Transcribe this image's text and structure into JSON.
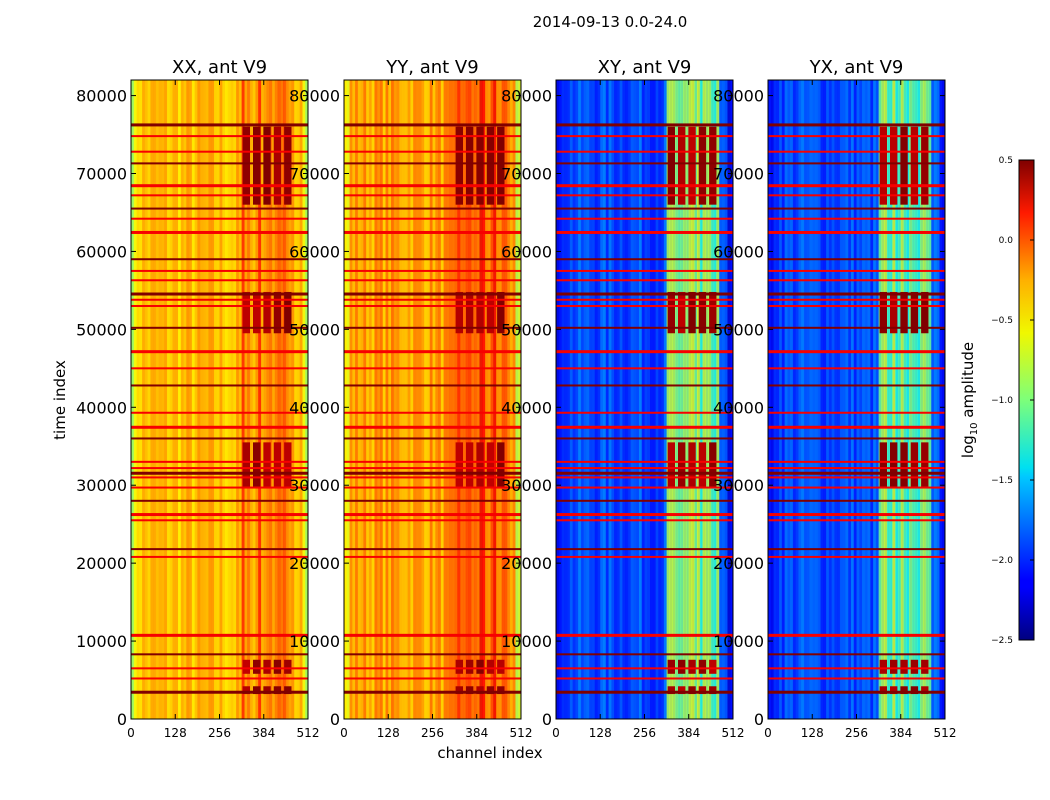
{
  "chart_data": {
    "type": "heatmap",
    "suptitle": "2014-09-13 0.0-24.0",
    "xlabel": "channel index",
    "ylabel": "time index",
    "x_range": [
      0,
      512
    ],
    "y_range": [
      0,
      82000
    ],
    "x_ticks": [
      0,
      128,
      256,
      384,
      512
    ],
    "y_ticks": [
      0,
      10000,
      20000,
      30000,
      40000,
      50000,
      60000,
      70000,
      80000
    ],
    "colorbar": {
      "label_prefix": "log",
      "label_sub": "10",
      "label_suffix": " amplitude",
      "range": [
        -2.5,
        0.5
      ],
      "ticks": [
        "0.5",
        "0.0",
        "−0.5",
        "−1.0",
        "−1.5",
        "−2.0",
        "−2.5"
      ],
      "tick_values": [
        0.5,
        0.0,
        -0.5,
        -1.0,
        -1.5,
        -2.0,
        -2.5
      ],
      "colormap": "jet"
    },
    "panels": [
      {
        "title": "XX, ant V9",
        "base_level": -0.45,
        "band_level": -0.2,
        "band_range": [
          320,
          470
        ]
      },
      {
        "title": "YY, ant V9",
        "base_level": -0.35,
        "band_level": -0.1,
        "band_range": [
          320,
          470
        ]
      },
      {
        "title": "XY, ant V9",
        "base_level": -1.9,
        "band_level": -1.0,
        "band_range": [
          320,
          470
        ]
      },
      {
        "title": "YX, ant V9",
        "base_level": -1.9,
        "band_level": -1.0,
        "band_range": [
          320,
          470
        ]
      }
    ],
    "flagged_time_rows": [
      3500,
      5200,
      6500,
      8300,
      10800,
      20800,
      21800,
      25500,
      26300,
      28000,
      29700,
      31000,
      31600,
      32200,
      33000,
      36000,
      37500,
      39300,
      42800,
      45000,
      47200,
      50200,
      53000,
      53800,
      54600,
      56300,
      57500,
      59000,
      62500,
      64200,
      65500,
      67200,
      68500,
      71300,
      72800,
      74800,
      76300
    ],
    "hot_blocks": [
      {
        "t0": 3200,
        "t1": 4200
      },
      {
        "t0": 5800,
        "t1": 7600
      },
      {
        "t0": 29800,
        "t1": 35500
      },
      {
        "t0": 49500,
        "t1": 54800
      },
      {
        "t0": 66000,
        "t1": 76000
      }
    ]
  }
}
